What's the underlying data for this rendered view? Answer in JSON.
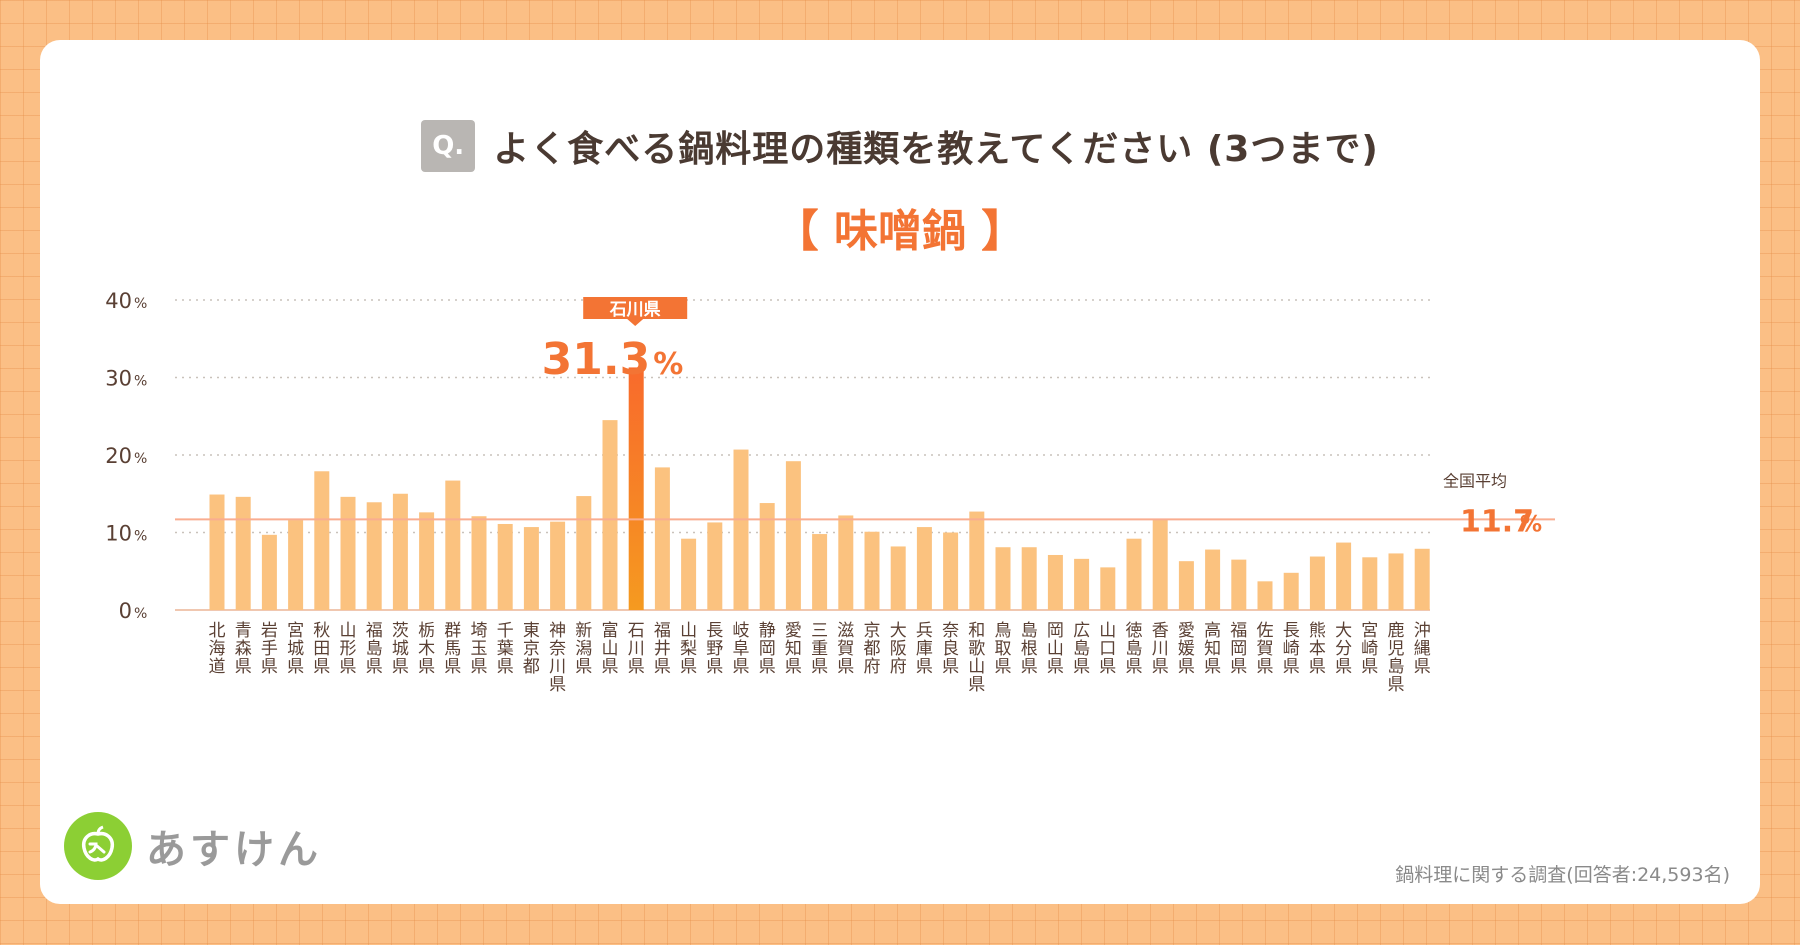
{
  "question": {
    "badge": "Q.",
    "text": "よく食べる鍋料理の種類を教えてください (3つまで)"
  },
  "subtitle": "【 味噌鍋 】",
  "chart_data": {
    "type": "bar",
    "title": "よく食べる鍋料理の種類を教えてください (3つまで)",
    "subtitle": "【 味噌鍋 】",
    "categories": [
      "北海道",
      "青森県",
      "岩手県",
      "宮城県",
      "秋田県",
      "山形県",
      "福島県",
      "茨城県",
      "栃木県",
      "群馬県",
      "埼玉県",
      "千葉県",
      "東京都",
      "神奈川県",
      "新潟県",
      "富山県",
      "石川県",
      "福井県",
      "山梨県",
      "長野県",
      "岐阜県",
      "静岡県",
      "愛知県",
      "三重県",
      "滋賀県",
      "京都府",
      "大阪府",
      "兵庫県",
      "奈良県",
      "和歌山県",
      "鳥取県",
      "島根県",
      "岡山県",
      "広島県",
      "山口県",
      "徳島県",
      "香川県",
      "愛媛県",
      "高知県",
      "福岡県",
      "佐賀県",
      "長崎県",
      "熊本県",
      "大分県",
      "宮崎県",
      "鹿児島県",
      "沖縄県"
    ],
    "values": [
      14.9,
      14.6,
      9.7,
      11.6,
      17.9,
      14.6,
      13.9,
      15.0,
      12.6,
      16.7,
      12.1,
      11.1,
      10.7,
      11.4,
      14.7,
      24.5,
      31.3,
      18.4,
      9.2,
      11.3,
      20.7,
      13.8,
      19.2,
      9.8,
      12.2,
      10.1,
      8.2,
      10.7,
      10.0,
      12.7,
      8.1,
      8.1,
      7.1,
      6.6,
      5.5,
      9.2,
      11.8,
      6.3,
      7.8,
      6.5,
      3.7,
      4.8,
      6.9,
      8.7,
      6.8,
      7.3,
      7.9
    ],
    "ylim": [
      0,
      40
    ],
    "yticks": [
      0,
      10,
      20,
      30,
      40
    ],
    "ytick_suffix": "%",
    "highlight": {
      "index": 16,
      "label": "石川県",
      "value_text": "31.3",
      "unit": "%"
    },
    "average": {
      "label": "全国平均",
      "value": 11.7,
      "value_text": "11.7",
      "unit": "%"
    },
    "colors": {
      "bar": "#fbc27f",
      "highlight_top": "#f86a2c",
      "highlight_bottom": "#f59a20",
      "avg_line": "#f9ad90",
      "accent": "#f37434",
      "axis_text": "#5a4034",
      "grid": "#c9c2bb"
    }
  },
  "brand": {
    "name": "あすけん"
  },
  "footnote": "鍋料理に関する調査(回答者:24,593名)"
}
